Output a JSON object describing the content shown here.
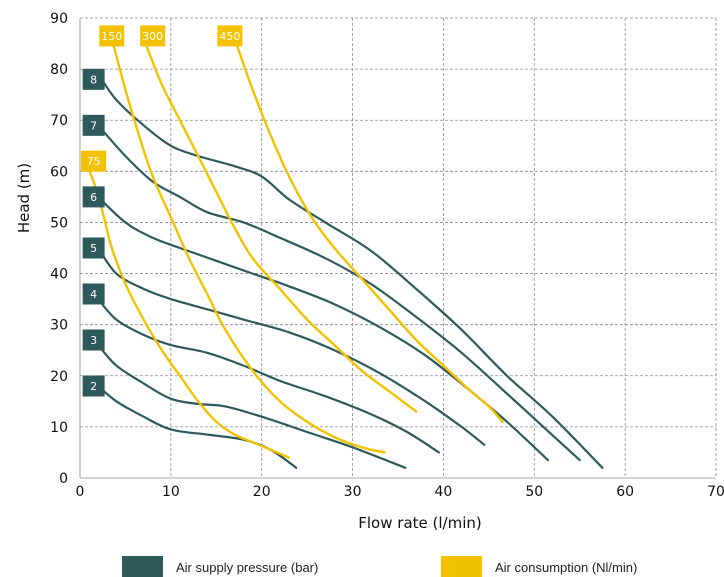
{
  "colors": {
    "pressure": "#2e5a5c",
    "consumption": "#f2c200",
    "grid": "#8c8c8c"
  },
  "chart_data": {
    "type": "line",
    "xlabel": "Flow rate (l/min)",
    "ylabel": "Head (m)",
    "xlim": [
      0,
      70
    ],
    "ylim": [
      0,
      90
    ],
    "x_ticks": [
      "0",
      "10",
      "20",
      "30",
      "40",
      "50",
      "60",
      "70"
    ],
    "y_ticks": [
      "0",
      "10",
      "20",
      "30",
      "40",
      "50",
      "60",
      "70",
      "80",
      "90"
    ],
    "grid": true,
    "legend": [
      {
        "label": "Air supply pressure (bar)",
        "color": "#2e5a5c"
      },
      {
        "label": "Air consumption (Nl/min)",
        "color": "#f2c200"
      }
    ],
    "series": [
      {
        "name": "2",
        "group": "pressure",
        "points": [
          [
            2,
            18
          ],
          [
            4,
            15
          ],
          [
            7,
            12
          ],
          [
            10,
            9.5
          ],
          [
            14,
            8.5
          ],
          [
            18,
            7.5
          ],
          [
            21,
            5.5
          ],
          [
            23.8,
            2
          ]
        ]
      },
      {
        "name": "3",
        "group": "pressure",
        "points": [
          [
            2,
            26
          ],
          [
            4,
            22
          ],
          [
            7,
            18.5
          ],
          [
            10,
            15.5
          ],
          [
            13,
            14.5
          ],
          [
            16,
            14
          ],
          [
            20,
            12
          ],
          [
            25,
            9
          ],
          [
            30,
            6
          ],
          [
            35.8,
            2
          ]
        ]
      },
      {
        "name": "4",
        "group": "pressure",
        "points": [
          [
            2,
            35
          ],
          [
            4,
            31
          ],
          [
            7,
            28
          ],
          [
            10,
            26
          ],
          [
            14,
            24.5
          ],
          [
            18,
            22
          ],
          [
            22,
            19
          ],
          [
            27,
            16
          ],
          [
            32,
            12.5
          ],
          [
            36,
            9
          ],
          [
            39.5,
            5
          ]
        ]
      },
      {
        "name": "5",
        "group": "pressure",
        "points": [
          [
            2,
            45
          ],
          [
            4,
            40
          ],
          [
            7,
            37
          ],
          [
            10,
            35
          ],
          [
            14,
            33
          ],
          [
            18,
            31
          ],
          [
            23,
            28.5
          ],
          [
            28,
            25
          ],
          [
            33,
            20.5
          ],
          [
            38,
            15
          ],
          [
            42,
            10
          ],
          [
            44.5,
            6.5
          ]
        ]
      },
      {
        "name": "6",
        "group": "pressure",
        "points": [
          [
            2,
            55
          ],
          [
            5,
            50
          ],
          [
            8,
            47
          ],
          [
            11,
            45
          ],
          [
            15,
            42.5
          ],
          [
            19,
            40
          ],
          [
            23,
            37.5
          ],
          [
            28,
            34
          ],
          [
            33,
            29.5
          ],
          [
            38,
            24
          ],
          [
            43,
            17
          ],
          [
            47,
            11
          ],
          [
            51.5,
            3.5
          ]
        ]
      },
      {
        "name": "7",
        "group": "pressure",
        "points": [
          [
            2,
            69
          ],
          [
            5,
            63
          ],
          [
            8,
            58
          ],
          [
            11,
            55
          ],
          [
            14,
            52
          ],
          [
            18,
            50
          ],
          [
            22,
            47
          ],
          [
            27,
            43
          ],
          [
            32,
            38
          ],
          [
            37,
            31.5
          ],
          [
            42,
            24.5
          ],
          [
            47,
            16.5
          ],
          [
            51,
            10
          ],
          [
            55,
            3.5
          ]
        ]
      },
      {
        "name": "8",
        "group": "pressure",
        "points": [
          [
            2,
            79
          ],
          [
            4,
            74
          ],
          [
            7,
            69
          ],
          [
            10,
            65
          ],
          [
            13,
            63
          ],
          [
            17,
            61
          ],
          [
            20,
            59
          ],
          [
            23,
            54.5
          ],
          [
            27,
            50
          ],
          [
            32,
            44.5
          ],
          [
            37,
            37
          ],
          [
            42,
            29
          ],
          [
            47,
            20
          ],
          [
            52,
            12
          ],
          [
            57.5,
            2
          ]
        ]
      },
      {
        "name": "75",
        "group": "consumption",
        "points": [
          [
            0.5,
            62
          ],
          [
            1.5,
            58
          ],
          [
            2.5,
            52
          ],
          [
            3.5,
            45
          ],
          [
            5,
            38
          ],
          [
            7,
            31
          ],
          [
            9,
            25
          ],
          [
            11,
            20
          ],
          [
            13,
            15
          ],
          [
            15,
            11
          ],
          [
            17,
            8.5
          ],
          [
            19,
            7
          ],
          [
            21,
            5.5
          ],
          [
            23,
            4
          ]
        ]
      },
      {
        "name": "150",
        "group": "consumption",
        "points": [
          [
            3.5,
            86
          ],
          [
            5,
            76
          ],
          [
            6.5,
            67
          ],
          [
            8,
            59
          ],
          [
            10,
            51
          ],
          [
            12,
            43
          ],
          [
            14,
            36
          ],
          [
            16,
            29
          ],
          [
            19,
            21
          ],
          [
            22,
            15
          ],
          [
            25,
            11
          ],
          [
            28,
            8
          ],
          [
            31,
            6
          ],
          [
            33.5,
            5
          ]
        ]
      },
      {
        "name": "300",
        "group": "consumption",
        "points": [
          [
            7,
            86
          ],
          [
            9,
            77
          ],
          [
            11,
            70
          ],
          [
            13,
            63
          ],
          [
            15,
            56
          ],
          [
            17,
            49
          ],
          [
            19,
            43
          ],
          [
            22,
            37
          ],
          [
            25,
            31
          ],
          [
            28,
            26
          ],
          [
            31,
            21
          ],
          [
            34,
            17
          ],
          [
            37,
            13
          ]
        ]
      },
      {
        "name": "450",
        "group": "consumption",
        "points": [
          [
            17,
            86
          ],
          [
            19,
            76
          ],
          [
            21,
            67
          ],
          [
            23,
            59
          ],
          [
            25.5,
            51
          ],
          [
            28,
            45
          ],
          [
            31,
            39
          ],
          [
            34,
            33
          ],
          [
            37,
            27
          ],
          [
            40,
            22
          ],
          [
            43,
            17
          ],
          [
            45,
            14
          ],
          [
            46.5,
            11
          ]
        ]
      }
    ],
    "badges": [
      {
        "text": "8",
        "group": "pressure",
        "x": 1.5,
        "y": 78
      },
      {
        "text": "7",
        "group": "pressure",
        "x": 1.5,
        "y": 69
      },
      {
        "text": "75",
        "group": "consumption",
        "x": 1.5,
        "y": 62
      },
      {
        "text": "6",
        "group": "pressure",
        "x": 1.5,
        "y": 55
      },
      {
        "text": "5",
        "group": "pressure",
        "x": 1.5,
        "y": 45
      },
      {
        "text": "4",
        "group": "pressure",
        "x": 1.5,
        "y": 36
      },
      {
        "text": "3",
        "group": "pressure",
        "x": 1.5,
        "y": 27
      },
      {
        "text": "2",
        "group": "pressure",
        "x": 1.5,
        "y": 18
      },
      {
        "text": "150",
        "group": "consumption",
        "x": 3.5,
        "y": 86.5
      },
      {
        "text": "300",
        "group": "consumption",
        "x": 8,
        "y": 86.5
      },
      {
        "text": "450",
        "group": "consumption",
        "x": 16.5,
        "y": 86.5
      }
    ]
  }
}
